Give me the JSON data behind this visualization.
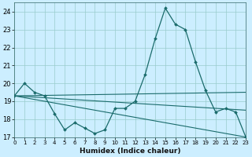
{
  "xlabel": "Humidex (Indice chaleur)",
  "bg_color": "#cceeff",
  "line_color": "#1a6b6b",
  "grid_color": "#99cccc",
  "xlim": [
    0,
    23
  ],
  "ylim": [
    17,
    24.5
  ],
  "yticks": [
    17,
    18,
    19,
    20,
    21,
    22,
    23,
    24
  ],
  "xticks": [
    0,
    1,
    2,
    3,
    4,
    5,
    6,
    7,
    8,
    9,
    10,
    11,
    12,
    13,
    14,
    15,
    16,
    17,
    18,
    19,
    20,
    21,
    22,
    23
  ],
  "line1_x": [
    0,
    1,
    2,
    3,
    4,
    5,
    6,
    7,
    8,
    9,
    10,
    11,
    12,
    13,
    14,
    15,
    16,
    17,
    18,
    19,
    20,
    21,
    22,
    23
  ],
  "line1_y": [
    19.3,
    20.0,
    19.5,
    19.3,
    18.3,
    17.4,
    17.8,
    17.5,
    17.2,
    17.4,
    18.6,
    18.6,
    19.0,
    20.5,
    22.5,
    24.2,
    23.3,
    23.0,
    21.2,
    19.6,
    18.4,
    18.6,
    18.4,
    17.0
  ],
  "line2_x": [
    0,
    23
  ],
  "line2_y": [
    19.3,
    19.5
  ],
  "line3_x": [
    0,
    23
  ],
  "line3_y": [
    19.3,
    18.5
  ],
  "line4_x": [
    0,
    23
  ],
  "line4_y": [
    19.3,
    17.0
  ]
}
